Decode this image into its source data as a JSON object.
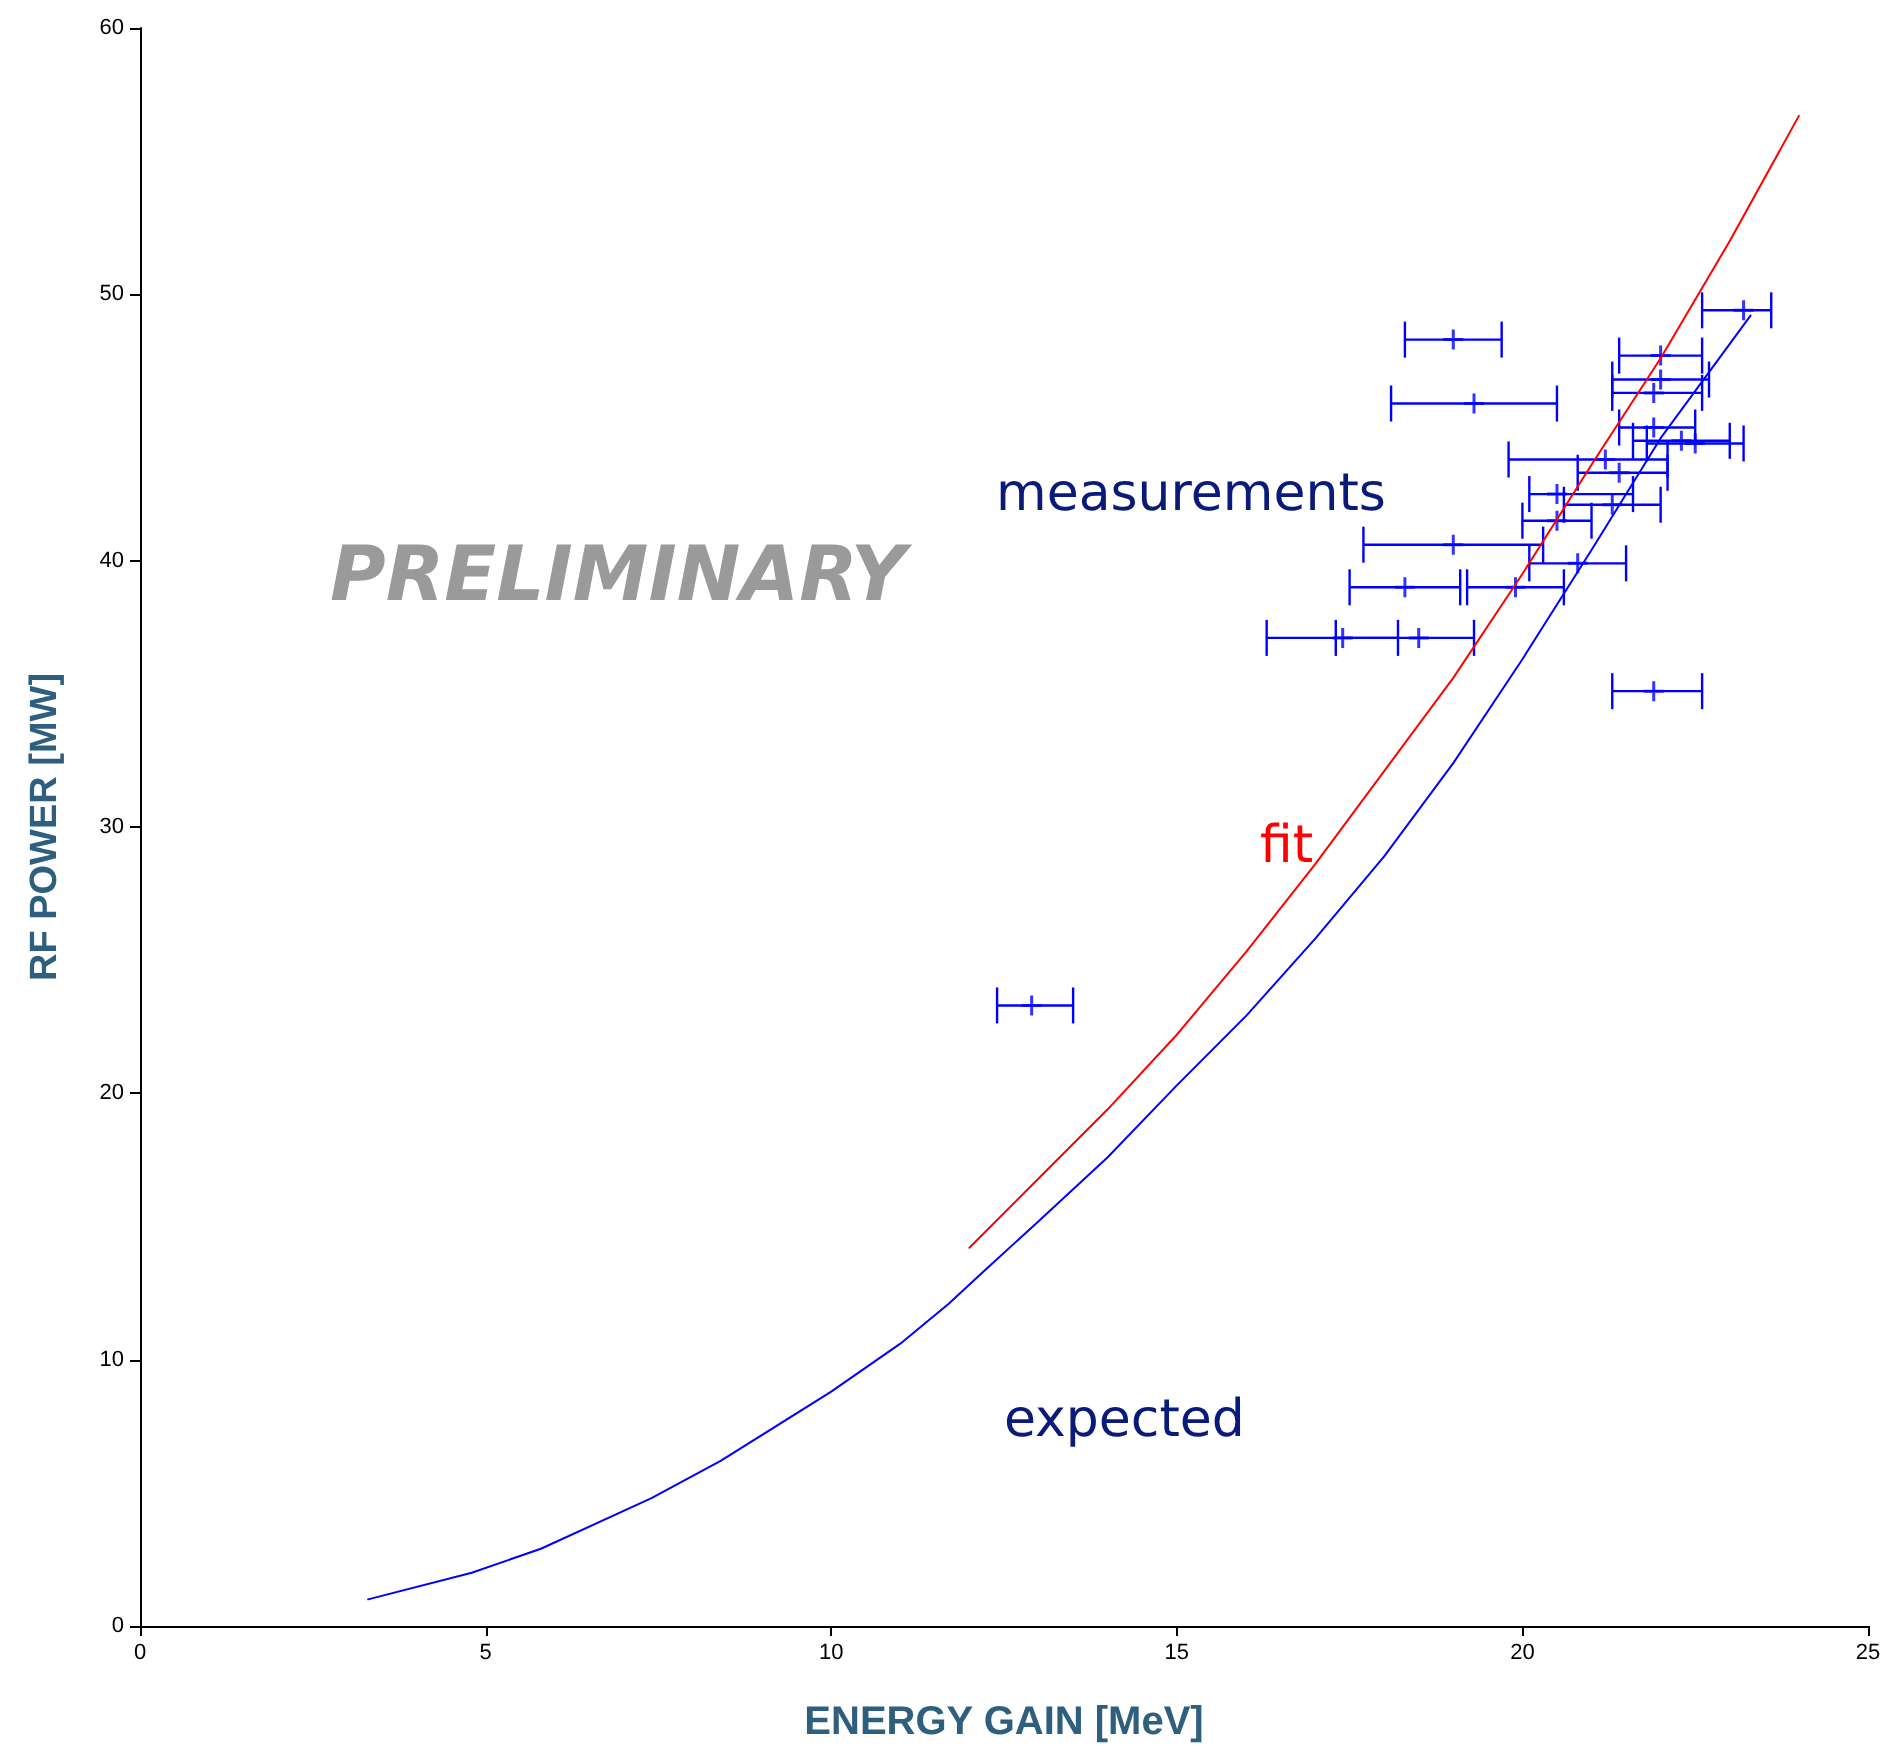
{
  "chart_data": {
    "type": "line",
    "xlabel": "ENERGY GAIN [MeV]",
    "ylabel": "RF POWER [MW]",
    "xlim": [
      0,
      25
    ],
    "xticks": [
      0,
      5,
      10,
      15,
      20,
      25
    ],
    "ylim": [
      0,
      60
    ],
    "yticks": [
      0,
      10,
      20,
      30,
      40,
      50,
      60
    ],
    "grid": false,
    "series": [
      {
        "color": "#0000ff",
        "marker": "none",
        "x": [
          3.3,
          4.8,
          5.8,
          7.4,
          8.4,
          10,
          11,
          11.7,
          12.2,
          13,
          14,
          15,
          16,
          17,
          18,
          19,
          20,
          21,
          22,
          23.3
        ],
        "values": [
          1.0,
          2.0,
          2.9,
          4.8,
          6.2,
          8.8,
          10.6,
          12.1,
          13.3,
          15.2,
          17.6,
          20.3,
          22.9,
          25.8,
          28.9,
          32.4,
          36.3,
          40.4,
          44.6,
          49.2
        ]
      },
      {
        "color": "#ff0000",
        "marker": "none",
        "x": [
          12,
          13,
          14,
          15,
          16,
          17,
          18,
          19,
          20,
          21,
          22,
          23,
          24
        ],
        "values": [
          14.2,
          16.8,
          19.4,
          22.2,
          25.3,
          28.6,
          32.1,
          35.6,
          39.5,
          43.6,
          47.6,
          52.0,
          56.7
        ]
      },
      {
        "type": "scatter",
        "color": "#0000ff",
        "marker": "cross",
        "x": [
          12.9,
          19.0,
          19.3,
          19.0,
          18.3,
          19.9,
          17.4,
          18.5,
          21.9,
          23.2,
          22.0,
          22.0,
          21.9,
          21.9,
          22.3,
          22.5,
          21.2,
          21.4,
          20.5,
          21.3,
          20.5,
          20.8
        ],
        "values": [
          23.3,
          48.3,
          45.9,
          40.6,
          39.0,
          39.0,
          37.1,
          37.1,
          35.1,
          49.4,
          47.7,
          46.8,
          46.3,
          45.0,
          44.5,
          44.4,
          43.8,
          43.3,
          42.5,
          42.1,
          41.5,
          39.9
        ],
        "xerrors": [
          [
            12.4,
            13.5
          ],
          [
            18.3,
            19.7
          ],
          [
            18.1,
            20.5
          ],
          [
            17.7,
            20.3
          ],
          [
            17.5,
            19.1
          ],
          [
            19.2,
            20.6
          ],
          [
            16.3,
            18.2
          ],
          [
            17.3,
            19.3
          ],
          [
            21.3,
            22.6
          ],
          [
            22.6,
            23.6
          ],
          [
            21.4,
            22.6
          ],
          [
            21.3,
            22.7
          ],
          [
            21.3,
            22.6
          ],
          [
            21.4,
            22.5
          ],
          [
            21.6,
            23.0
          ],
          [
            21.8,
            23.2
          ],
          [
            19.8,
            22.1
          ],
          [
            20.8,
            22.1
          ],
          [
            20.1,
            21.6
          ],
          [
            20.6,
            22.0
          ],
          [
            20.0,
            21.0
          ],
          [
            20.1,
            21.5
          ]
        ]
      }
    ],
    "annotations": [
      "measurements",
      "fit",
      "expected",
      "PRELIMINARY"
    ]
  }
}
